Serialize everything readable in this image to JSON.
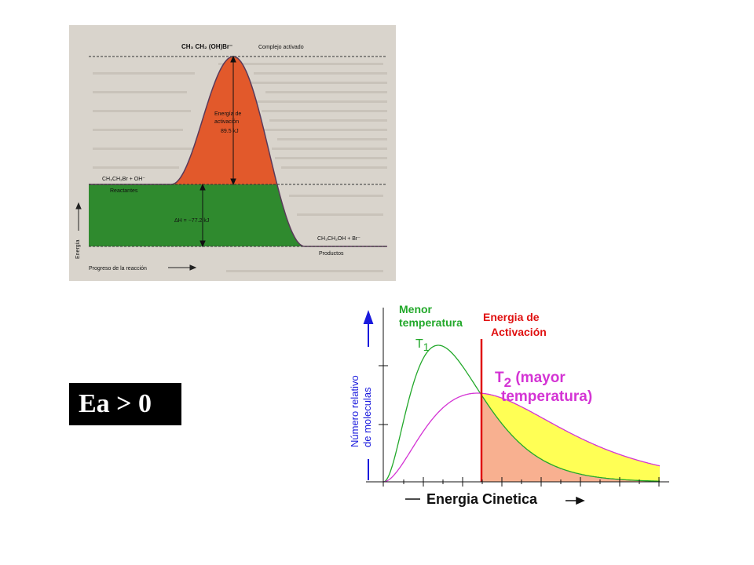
{
  "colors": {
    "background": "#ffffff",
    "scan_paper": "#d9d4cc",
    "activation_fill": "#e2592b",
    "enthalpy_fill": "#2f8a2e",
    "t1_curve": "#22a82a",
    "t2_curve": "#d434d4",
    "activation_line": "#e01010",
    "energy_arrow": "#1a1add",
    "high_energy_fill": "#ffff55",
    "overlap_fill": "#f8b090",
    "badge_bg": "#000000",
    "badge_text": "#ffffff"
  },
  "reaction_diagram": {
    "complex_formula": "CH₃ CH₂ (OH)Br⁻",
    "complex_label": "Complejo activado",
    "activation_label_1": "Energía de",
    "activation_label_2": "activación",
    "activation_value": "89.5 kJ",
    "reactants_formula": "CH₃CH₂Br + OH⁻",
    "reactants_label": "Reactantes",
    "delta_h": "ΔH = −77.2 kJ",
    "products_formula": "CH₃CH₂OH + Br⁻",
    "products_label": "Productos",
    "y_axis_label": "Energía",
    "x_axis_label": "Progreso de la reacción"
  },
  "badge": {
    "text": "Ea > 0"
  },
  "distribution": {
    "t1_title_line1": "Menor",
    "t1_title_line2": "temperatura",
    "t1_label": "T",
    "t1_sub": "1",
    "activation_line1": "Energia de",
    "activation_line2": "Activación",
    "t2_label": "T",
    "t2_sub": "2",
    "t2_suffix": " (mayor",
    "t2_line2": "temperatura)",
    "y_label_line1": "Número relativo",
    "y_label_line2": "de moleculas",
    "x_label": "Energia Cinetica",
    "icon": "up-arrow-icon"
  }
}
